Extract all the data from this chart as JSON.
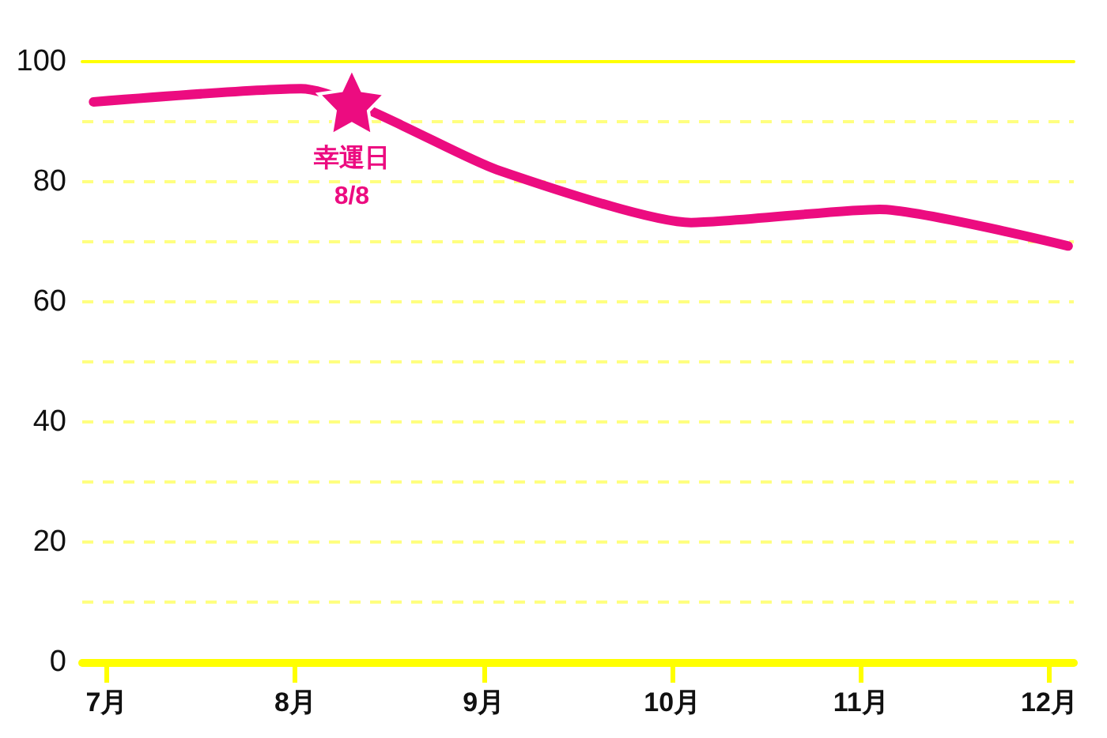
{
  "chart_data": {
    "type": "line",
    "x": [
      6.93,
      8.03,
      9.07,
      10.1,
      11.1,
      12.1
    ],
    "xlim": [
      6.87,
      12.13
    ],
    "xticks": [
      {
        "value": 7,
        "label": "7月"
      },
      {
        "value": 8,
        "label": "8月"
      },
      {
        "value": 9,
        "label": "9月"
      },
      {
        "value": 10,
        "label": "10月"
      },
      {
        "value": 11,
        "label": "11月"
      },
      {
        "value": 12,
        "label": "12月"
      }
    ],
    "ylim": [
      0,
      100
    ],
    "yticks": [
      0,
      {
        "value": 10,
        "label": null
      },
      20,
      {
        "value": 30,
        "label": null
      },
      40,
      {
        "value": 50,
        "label": null
      },
      60,
      {
        "value": 70,
        "label": null
      },
      80,
      {
        "value": 90,
        "label": null
      },
      100
    ],
    "grid": "y",
    "marker": "none",
    "line_style": "solid",
    "series": [
      {
        "color": "#ec0c80",
        "values": [
          93.3,
          95.5,
          82,
          73.2,
          75.4,
          69.3
        ]
      },
      {
        "type": "scatter",
        "marker": "star",
        "color": "#ec0c80",
        "x": [
          8.3
        ],
        "values": [
          93.3
        ]
      }
    ],
    "annotations": [
      {
        "text": "幸運日\n8/8",
        "x": 8.3,
        "y": 93.3
      }
    ]
  }
}
